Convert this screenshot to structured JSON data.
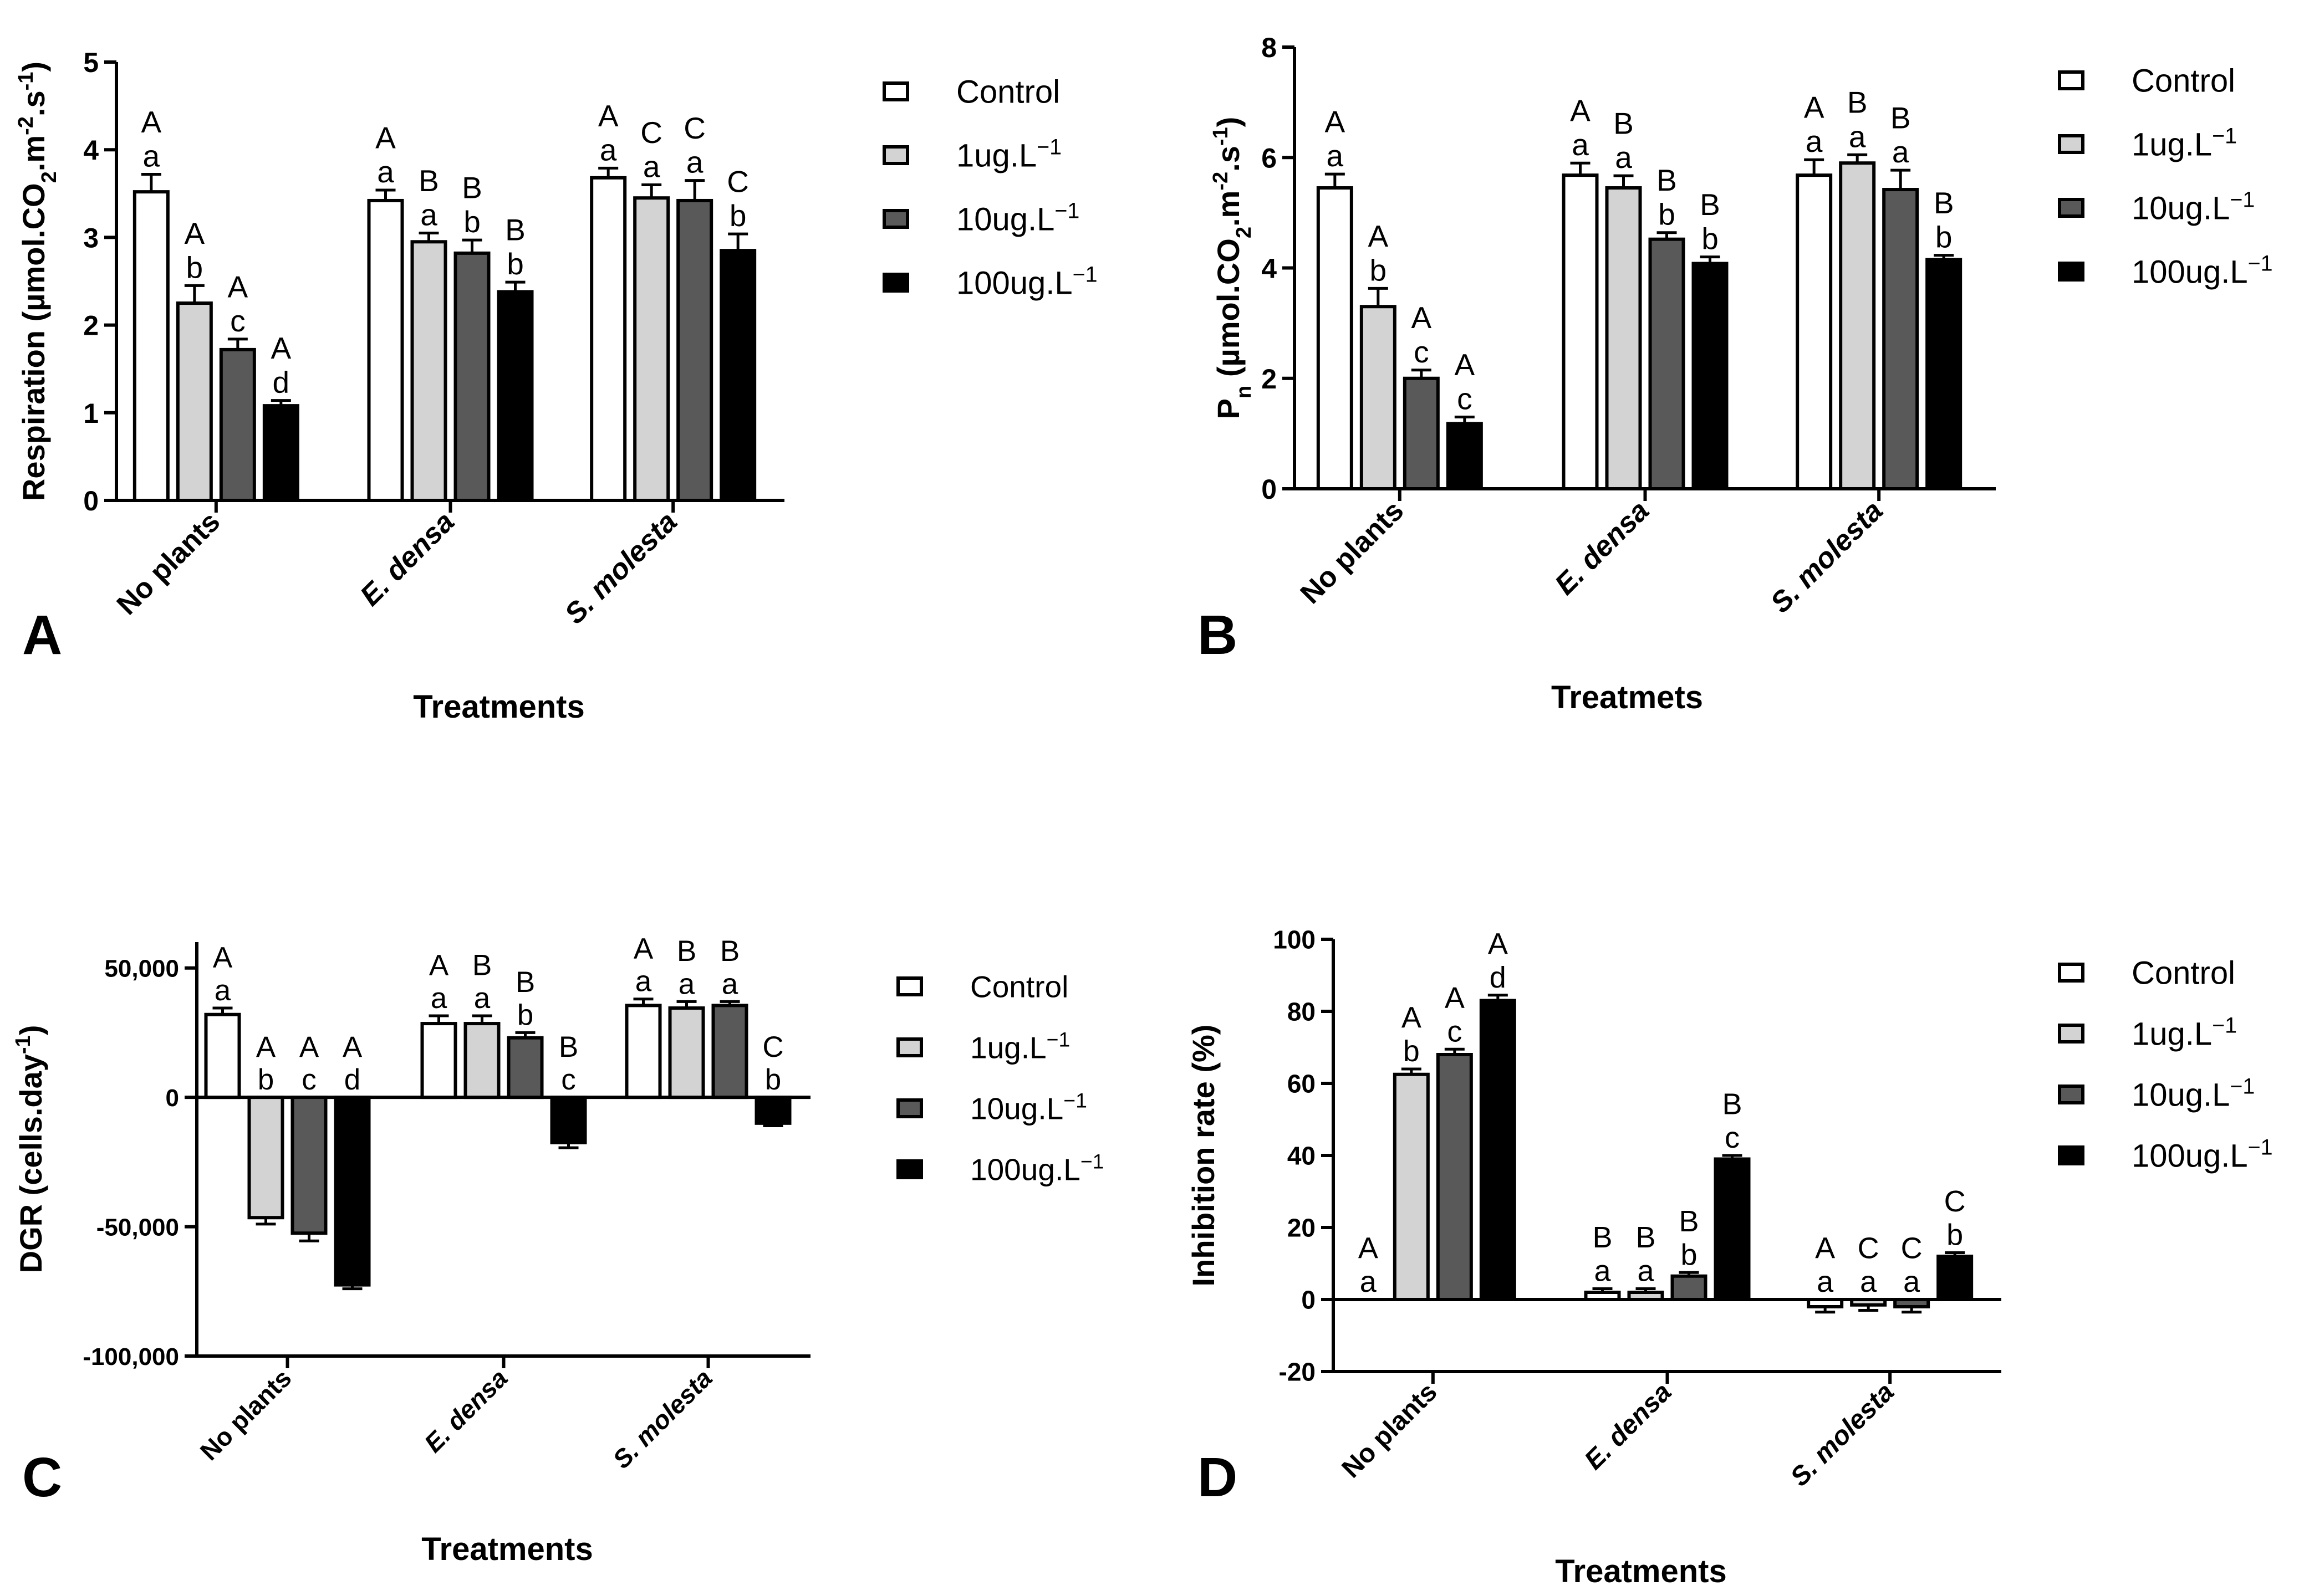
{
  "legend_labels": [
    "Control",
    "1ug.L",
    "10ug.L",
    "100ug.L"
  ],
  "legend_superscript": "−1",
  "colors": [
    "#ffffff",
    "#d3d3d3",
    "#595959",
    "#000000"
  ],
  "chart_data": [
    {
      "type": "bar",
      "panel": "A",
      "ylabel": "Respiration (µmol.CO",
      "ylabel_parts": {
        "sub1": "2",
        "mid": ".m",
        "sup1": "-2",
        "mid2": ".s",
        "sup2": "-1",
        "end": ")"
      },
      "xlabel": "Treatments",
      "categories": [
        "No plants",
        "E. densa",
        "S. molesta"
      ],
      "italic_categories": [
        false,
        true,
        true
      ],
      "ylim": [
        0,
        5
      ],
      "yticks": [
        0,
        1,
        2,
        3,
        4,
        5
      ],
      "ytick_labels": [
        "0",
        "1",
        "2",
        "3",
        "4",
        "5"
      ],
      "series": [
        {
          "name": "Control",
          "values": [
            3.52,
            3.42,
            3.68
          ],
          "errors": [
            0.2,
            0.12,
            0.11
          ],
          "upper": [
            "A",
            "A",
            "A"
          ],
          "lower": [
            "a",
            "a",
            "a"
          ]
        },
        {
          "name": "1ug.L",
          "values": [
            2.25,
            2.95,
            3.45
          ],
          "errors": [
            0.2,
            0.1,
            0.15
          ],
          "upper": [
            "A",
            "B",
            "C"
          ],
          "lower": [
            "b",
            "a",
            "a"
          ]
        },
        {
          "name": "10ug.L",
          "values": [
            1.72,
            2.82,
            3.42
          ],
          "errors": [
            0.12,
            0.15,
            0.23
          ],
          "upper": [
            "A",
            "B",
            "C"
          ],
          "lower": [
            "c",
            "b",
            "a"
          ]
        },
        {
          "name": "100ug.L",
          "values": [
            1.08,
            2.38,
            2.85
          ],
          "errors": [
            0.06,
            0.11,
            0.19
          ],
          "upper": [
            "A",
            "B",
            "C"
          ],
          "lower": [
            "d",
            "b",
            "b"
          ]
        }
      ]
    },
    {
      "type": "bar",
      "panel": "B",
      "ylabel": "P",
      "ylabel_parts": {
        "sub0": "n",
        "pre": " (µmol.CO",
        "sub1": "2",
        "mid": ".m",
        "sup1": "-2",
        "mid2": ".s",
        "sup2": "-1",
        "end": ")"
      },
      "xlabel": "Treatmets",
      "categories": [
        "No plants",
        "E. densa",
        "S. molesta"
      ],
      "italic_categories": [
        false,
        true,
        true
      ],
      "ylim": [
        0,
        8
      ],
      "yticks": [
        0,
        2,
        4,
        6,
        8
      ],
      "ytick_labels": [
        "0",
        "2",
        "4",
        "6",
        "8"
      ],
      "series": [
        {
          "name": "Control",
          "values": [
            5.45,
            5.68,
            5.68
          ],
          "errors": [
            0.25,
            0.22,
            0.28
          ],
          "upper": [
            "A",
            "A",
            "A"
          ],
          "lower": [
            "a",
            "a",
            "a"
          ]
        },
        {
          "name": "1ug.L",
          "values": [
            3.3,
            5.45,
            5.9
          ],
          "errors": [
            0.33,
            0.22,
            0.15
          ],
          "upper": [
            "A",
            "B",
            "B"
          ],
          "lower": [
            "b",
            "a",
            "a"
          ]
        },
        {
          "name": "10ug.L",
          "values": [
            2.0,
            4.52,
            5.42
          ],
          "errors": [
            0.15,
            0.12,
            0.35
          ],
          "upper": [
            "A",
            "B",
            "B"
          ],
          "lower": [
            "c",
            "b",
            "a"
          ]
        },
        {
          "name": "100ug.L",
          "values": [
            1.18,
            4.08,
            4.15
          ],
          "errors": [
            0.12,
            0.12,
            0.08
          ],
          "upper": [
            "A",
            "B",
            "B"
          ],
          "lower": [
            "c",
            "b",
            "b"
          ]
        }
      ]
    },
    {
      "type": "bar",
      "panel": "C",
      "ylabel": "DGR (cells.day",
      "ylabel_parts": {
        "sup2": "-1",
        "end": ")"
      },
      "xlabel": "Treatments",
      "categories": [
        "No plants",
        "E. densa",
        "S. molesta"
      ],
      "italic_categories": [
        false,
        true,
        true
      ],
      "ylim": [
        -100000,
        60000
      ],
      "yticks": [
        -100000,
        -50000,
        0,
        50000
      ],
      "ytick_labels": [
        "-100,000",
        "-50,000",
        "0",
        "50,000"
      ],
      "series": [
        {
          "name": "Control",
          "values": [
            32000,
            28500,
            35500
          ],
          "errors": [
            2500,
            3000,
            2500
          ],
          "upper": [
            "A",
            "A",
            "A"
          ],
          "lower": [
            "a",
            "a",
            "a"
          ]
        },
        {
          "name": "1ug.L",
          "values": [
            -46500,
            28500,
            34500
          ],
          "errors": [
            2500,
            3000,
            2500
          ],
          "upper": [
            "A",
            "B",
            "B"
          ],
          "lower": [
            "b",
            "a",
            "a"
          ]
        },
        {
          "name": "10ug.L",
          "values": [
            -52500,
            23000,
            35500
          ],
          "errors": [
            3000,
            2000,
            1500
          ],
          "upper": [
            "A",
            "B",
            "B"
          ],
          "lower": [
            "c",
            "b",
            "a"
          ]
        },
        {
          "name": "100ug.L",
          "values": [
            -72500,
            -17500,
            -10000
          ],
          "errors": [
            1500,
            2000,
            1000
          ],
          "upper": [
            "A",
            "B",
            "C"
          ],
          "lower": [
            "d",
            "c",
            "b"
          ]
        }
      ]
    },
    {
      "type": "bar",
      "panel": "D",
      "ylabel": "Inhibition rate (%)",
      "ylabel_parts": {},
      "xlabel": "Treatments",
      "categories": [
        "No plants",
        "E. densa",
        "S. molesta"
      ],
      "italic_categories": [
        false,
        true,
        true
      ],
      "ylim": [
        -20,
        100
      ],
      "yticks": [
        -20,
        0,
        20,
        40,
        60,
        80,
        100
      ],
      "ytick_labels": [
        "-20",
        "0",
        "20",
        "40",
        "60",
        "80",
        "100"
      ],
      "series": [
        {
          "name": "Control",
          "values": [
            0,
            2,
            -2
          ],
          "errors": [
            0,
            1,
            1.5
          ],
          "upper": [
            "A",
            "B",
            "A"
          ],
          "lower": [
            "a",
            "a",
            "a"
          ]
        },
        {
          "name": "1ug.L",
          "values": [
            62.5,
            2,
            -1.5
          ],
          "errors": [
            1.5,
            1,
            1.5
          ],
          "upper": [
            "A",
            "B",
            "C"
          ],
          "lower": [
            "b",
            "a",
            "a"
          ]
        },
        {
          "name": "10ug.L",
          "values": [
            68,
            6.5,
            -2
          ],
          "errors": [
            1.5,
            1,
            1.5
          ],
          "upper": [
            "A",
            "B",
            "C"
          ],
          "lower": [
            "c",
            "b",
            "a"
          ]
        },
        {
          "name": "100ug.L",
          "values": [
            83,
            39,
            12
          ],
          "errors": [
            1.5,
            1,
            1
          ],
          "upper": [
            "A",
            "B",
            "C"
          ],
          "lower": [
            "d",
            "c",
            "b"
          ]
        }
      ]
    }
  ]
}
